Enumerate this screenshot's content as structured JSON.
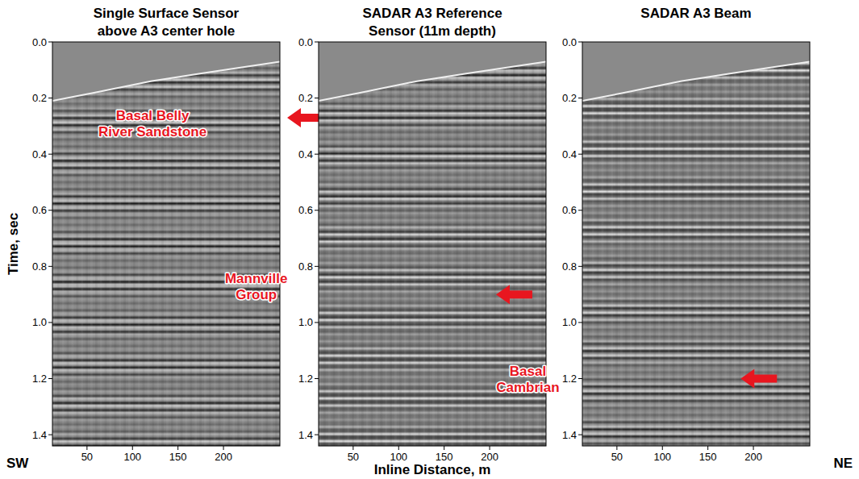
{
  "figure": {
    "y_label": "Time, sec",
    "x_label": "Inline Distance, m",
    "left_label": "SW",
    "right_label": "NE"
  },
  "chart_data": [
    {
      "type": "seismic",
      "title": "Single Surface Sensor above A3 center hole",
      "xlim": [
        12,
        262
      ],
      "ylim": [
        0,
        1.44
      ],
      "xticks": [
        50,
        100,
        150,
        200
      ],
      "yticks": [
        {
          "value": 0,
          "label": "0.0"
        },
        0.2,
        0.4,
        0.6,
        0.8,
        {
          "value": 1,
          "label": "1.0"
        },
        1.2,
        1.4
      ],
      "first_arrival": {
        "x": [
          12,
          60,
          120,
          180,
          262
        ],
        "y": [
          0.21,
          0.18,
          0.14,
          0.11,
          0.07
        ]
      },
      "annotations": [
        {
          "text": "Basal Belly River Sandstone",
          "x": 122,
          "y": 0.29
        },
        {
          "text": "Mannville Group",
          "x": 236,
          "y": 0.87
        }
      ],
      "arrows": [
        {
          "x": 270,
          "y": 0.27
        }
      ]
    },
    {
      "type": "seismic",
      "title": "SADAR A3 Reference Sensor (11m depth)",
      "xlim": [
        12,
        262
      ],
      "ylim": [
        0,
        1.44
      ],
      "xticks": [
        50,
        100,
        150,
        200
      ],
      "yticks": [
        {
          "value": 0,
          "label": "0.0"
        },
        0.2,
        0.4,
        0.6,
        0.8,
        {
          "value": 1,
          "label": "1.0"
        },
        1.2,
        1.4
      ],
      "first_arrival": {
        "x": [
          12,
          60,
          120,
          180,
          262
        ],
        "y": [
          0.21,
          0.18,
          0.14,
          0.11,
          0.07
        ]
      },
      "annotations": [
        {
          "text": "Basal Cambrian",
          "x": 242,
          "y": 1.2
        }
      ],
      "arrows": [
        {
          "x": 207,
          "y": 0.9
        }
      ]
    },
    {
      "type": "seismic",
      "title": "SADAR A3 Beam",
      "xlim": [
        12,
        262
      ],
      "ylim": [
        0,
        1.44
      ],
      "xticks": [
        50,
        100,
        150,
        200
      ],
      "yticks": [
        {
          "value": 0,
          "label": "0.0"
        },
        0.2,
        0.4,
        0.6,
        0.8,
        {
          "value": 1,
          "label": "1.0"
        },
        1.2,
        1.4
      ],
      "first_arrival": {
        "x": [
          12,
          60,
          120,
          180,
          262
        ],
        "y": [
          0.21,
          0.18,
          0.14,
          0.11,
          0.07
        ]
      },
      "annotations": [],
      "arrows": [
        {
          "x": 186,
          "y": 1.2
        }
      ]
    }
  ]
}
